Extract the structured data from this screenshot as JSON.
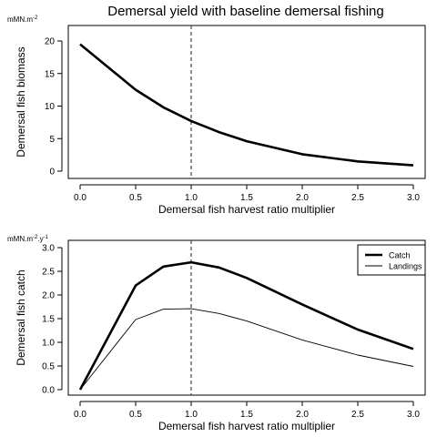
{
  "chart_data": [
    {
      "type": "line",
      "title": "Demersal yield with baseline demersal fishing",
      "xlabel": "Demersal fish harvest ratio multiplier",
      "ylabel": "Demersal fish biomass",
      "units": "mMN.m",
      "units_sup": "-2",
      "xlim": [
        0,
        3
      ],
      "ylim": [
        0,
        20
      ],
      "xticks": [
        "0.0",
        "0.5",
        "1.0",
        "1.5",
        "2.0",
        "2.5",
        "3.0"
      ],
      "yticks": [
        "0",
        "5",
        "10",
        "15",
        "20"
      ],
      "reference_line_x": 1.0,
      "series": [
        {
          "x": [
            0,
            0.5,
            0.75,
            1.0,
            1.25,
            1.5,
            2.0,
            2.5,
            3.0
          ],
          "values": [
            19.5,
            12.5,
            9.8,
            7.7,
            6.0,
            4.6,
            2.6,
            1.5,
            0.9
          ],
          "style": "thick"
        }
      ]
    },
    {
      "type": "line",
      "xlabel": "Demersal fish harvest ratio multiplier",
      "ylabel": "Demersal fish catch",
      "units": "mMN.m",
      "units_sup1": "-2",
      "units_mid": ".y",
      "units_sup2": "-1",
      "xlim": [
        0,
        3
      ],
      "ylim": [
        0,
        3
      ],
      "xticks": [
        "0.0",
        "0.5",
        "1.0",
        "1.5",
        "2.0",
        "2.5",
        "3.0"
      ],
      "yticks": [
        "0.0",
        "0.5",
        "1.0",
        "1.5",
        "2.0",
        "2.5",
        "3.0"
      ],
      "reference_line_x": 1.0,
      "legend": "top-right",
      "series": [
        {
          "name": "Catch",
          "x": [
            0,
            0.5,
            0.75,
            1.0,
            1.25,
            1.5,
            2.0,
            2.5,
            3.0
          ],
          "values": [
            0.0,
            2.2,
            2.6,
            2.69,
            2.58,
            2.36,
            1.8,
            1.27,
            0.86
          ],
          "style": "thick"
        },
        {
          "name": "Landings",
          "x": [
            0,
            0.5,
            0.75,
            1.0,
            1.25,
            1.5,
            2.0,
            2.5,
            3.0
          ],
          "values": [
            0.0,
            1.48,
            1.7,
            1.71,
            1.61,
            1.45,
            1.05,
            0.73,
            0.49
          ],
          "style": "thin"
        }
      ]
    }
  ]
}
